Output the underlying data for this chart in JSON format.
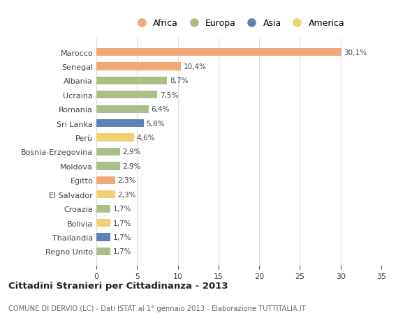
{
  "countries": [
    "Marocco",
    "Senegal",
    "Albania",
    "Ucraina",
    "Romania",
    "Sri Lanka",
    "Perù",
    "Bosnia-Erzegovina",
    "Moldova",
    "Egitto",
    "El Salvador",
    "Croazia",
    "Bolivia",
    "Thailandia",
    "Regno Unito"
  ],
  "values": [
    30.1,
    10.4,
    8.7,
    7.5,
    6.4,
    5.8,
    4.6,
    2.9,
    2.9,
    2.3,
    2.3,
    1.7,
    1.7,
    1.7,
    1.7
  ],
  "labels": [
    "30,1%",
    "10,4%",
    "8,7%",
    "7,5%",
    "6,4%",
    "5,8%",
    "4,6%",
    "2,9%",
    "2,9%",
    "2,3%",
    "2,3%",
    "1,7%",
    "1,7%",
    "1,7%",
    "1,7%"
  ],
  "continents": [
    "Africa",
    "Africa",
    "Europa",
    "Europa",
    "Europa",
    "Asia",
    "America",
    "Europa",
    "Europa",
    "Africa",
    "America",
    "Europa",
    "America",
    "Asia",
    "Europa"
  ],
  "continent_colors": {
    "Africa": "#F0A878",
    "Europa": "#AABF88",
    "Asia": "#6080B8",
    "America": "#F0D070"
  },
  "legend_order": [
    "Africa",
    "Europa",
    "Asia",
    "America"
  ],
  "xlim": [
    0,
    35
  ],
  "xticks": [
    0,
    5,
    10,
    15,
    20,
    25,
    30,
    35
  ],
  "title": "Cittadini Stranieri per Cittadinanza - 2013",
  "subtitle": "COMUNE DI DERVIO (LC) - Dati ISTAT al 1° gennaio 2013 - Elaborazione TUTTITALIA.IT",
  "bg_color": "#FFFFFF",
  "grid_color": "#DDDDDD",
  "bar_height": 0.55
}
